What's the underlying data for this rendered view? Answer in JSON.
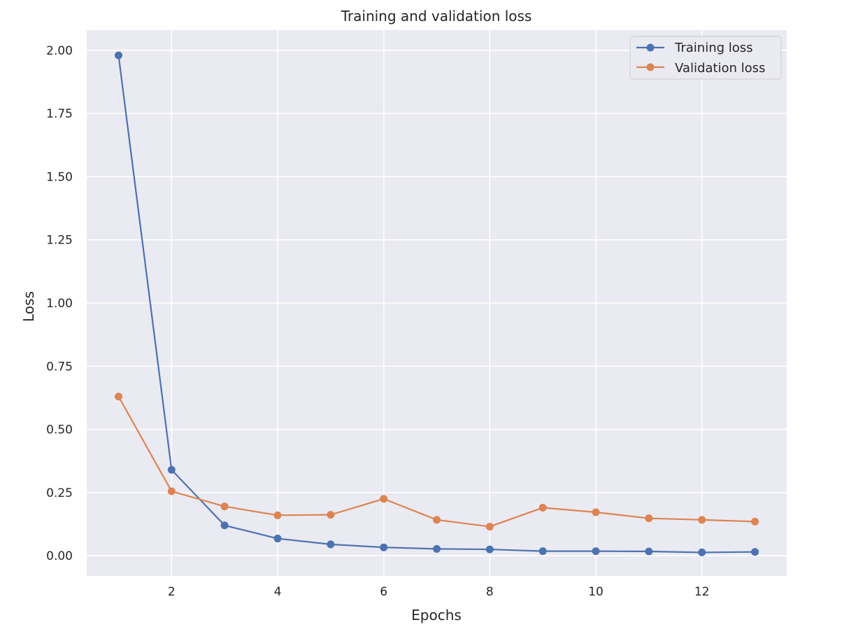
{
  "chart_data": {
    "type": "line",
    "title": "Training and validation loss",
    "xlabel": "Epochs",
    "ylabel": "Loss",
    "x": [
      1,
      2,
      3,
      4,
      5,
      6,
      7,
      8,
      9,
      10,
      11,
      12,
      13
    ],
    "xlim": [
      0.4,
      13.6
    ],
    "ylim": [
      -0.08,
      2.08
    ],
    "xticks": [
      2,
      4,
      6,
      8,
      10,
      12
    ],
    "xtick_labels": [
      "2",
      "4",
      "6",
      "8",
      "10",
      "12"
    ],
    "yticks": [
      0.0,
      0.25,
      0.5,
      0.75,
      1.0,
      1.25,
      1.5,
      1.75,
      2.0
    ],
    "ytick_labels": [
      "0.00",
      "0.25",
      "0.50",
      "0.75",
      "1.00",
      "1.25",
      "1.50",
      "1.75",
      "2.00"
    ],
    "grid": true,
    "legend_position": "top-right",
    "series": [
      {
        "name": "Training loss",
        "color": "#4c72b0",
        "values": [
          1.98,
          0.34,
          0.12,
          0.068,
          0.045,
          0.033,
          0.027,
          0.025,
          0.018,
          0.018,
          0.017,
          0.013,
          0.015
        ]
      },
      {
        "name": "Validation loss",
        "color": "#dd8452",
        "values": [
          0.63,
          0.255,
          0.195,
          0.16,
          0.162,
          0.225,
          0.142,
          0.115,
          0.19,
          0.172,
          0.148,
          0.142,
          0.135
        ]
      }
    ]
  }
}
